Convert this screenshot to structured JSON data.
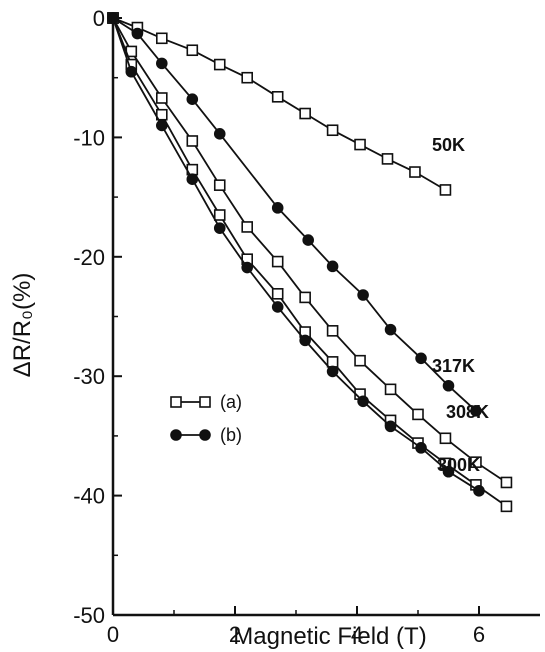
{
  "chart_data": {
    "type": "line",
    "xlabel": "Magnetic Field (T)",
    "ylabel": "ΔR/R₀(%)",
    "xlim": [
      0,
      7
    ],
    "ylim": [
      -50,
      0
    ],
    "x_ticks": [
      "0",
      "2",
      "4",
      "6"
    ],
    "y_ticks": [
      "0",
      "-10",
      "-20",
      "-30",
      "-40",
      "-50"
    ],
    "legend": [
      {
        "marker": "open-square",
        "label": "(a)"
      },
      {
        "marker": "filled-circle",
        "label": "(b)"
      }
    ],
    "series": [
      {
        "name": "50K",
        "sample": "a",
        "marker": "open-square",
        "x": [
          0,
          0.4,
          0.8,
          1.3,
          1.75,
          2.2,
          2.7,
          3.15,
          3.6,
          4.05,
          4.5,
          4.95,
          5.45
        ],
        "y": [
          0,
          -0.8,
          -1.7,
          -2.7,
          -3.9,
          -5.0,
          -6.6,
          -8.0,
          -9.4,
          -10.6,
          -11.8,
          -12.9,
          -14.4
        ]
      },
      {
        "name": "317K",
        "sample": "b",
        "marker": "filled-circle",
        "x": [
          0,
          0.4,
          0.8,
          1.3,
          1.75,
          2.7,
          3.2,
          3.6,
          4.1,
          4.55,
          5.05,
          5.5,
          5.95
        ],
        "y": [
          0,
          -1.3,
          -3.8,
          -6.8,
          -9.7,
          -15.9,
          -18.6,
          -20.8,
          -23.2,
          -26.1,
          -28.5,
          -30.8,
          -32.9
        ]
      },
      {
        "name": "308K",
        "sample": "a",
        "marker": "open-square",
        "x": [
          0,
          0.3,
          0.8,
          1.3,
          1.75,
          2.2,
          2.7,
          3.15,
          3.6,
          4.05,
          4.55,
          5.0,
          5.45,
          5.95,
          6.45
        ],
        "y": [
          0,
          -2.8,
          -6.7,
          -10.3,
          -14.0,
          -17.5,
          -20.4,
          -23.4,
          -26.2,
          -28.7,
          -31.1,
          -33.2,
          -35.2,
          -37.2,
          -38.9
        ]
      },
      {
        "name": "300K",
        "sample": "a",
        "marker": "open-square",
        "x": [
          0,
          0.3,
          0.8,
          1.3,
          1.75,
          2.2,
          2.7,
          3.15,
          3.6,
          4.05,
          4.55,
          5.0,
          5.45,
          5.95,
          6.45
        ],
        "y": [
          0,
          -3.9,
          -8.1,
          -12.7,
          -16.5,
          -20.2,
          -23.1,
          -26.3,
          -28.8,
          -31.5,
          -33.7,
          -35.6,
          -37.3,
          -39.1,
          -40.9
        ]
      },
      {
        "name": "300K",
        "sample": "b",
        "marker": "filled-circle",
        "x": [
          0,
          0.3,
          0.8,
          1.3,
          1.75,
          2.2,
          2.7,
          3.15,
          3.6,
          4.1,
          4.55,
          5.05,
          5.5,
          6.0
        ],
        "y": [
          0,
          -4.5,
          -9.0,
          -13.5,
          -17.6,
          -20.9,
          -24.2,
          -27.0,
          -29.6,
          -32.1,
          -34.2,
          -36.0,
          -38.0,
          -39.6
        ]
      }
    ]
  }
}
